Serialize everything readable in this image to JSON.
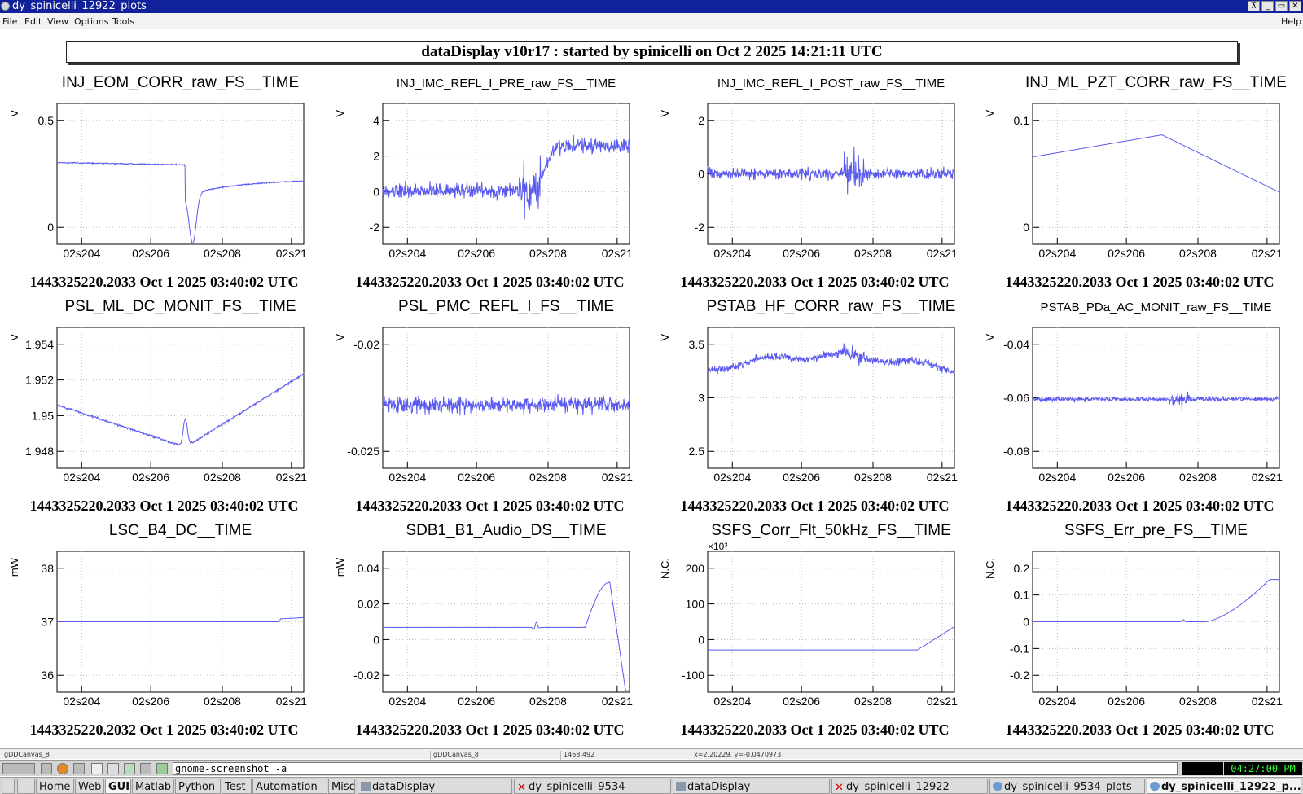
{
  "window": {
    "title": "dy_spinicelli_12922_plots"
  },
  "menu": {
    "file": "File",
    "edit": "Edit",
    "view": "View",
    "options": "Options",
    "tools": "Tools",
    "help": "Help"
  },
  "header": {
    "text": "dataDisplay v10r17 : started by spinicelli on Oct  2 2025 14:21:11 UTC"
  },
  "colors": {
    "trace": "#5a5af0",
    "title_bar": "#10219a",
    "clock_text": "#33ff33"
  },
  "plots": [
    {
      "title": "INJ_EOM_CORR_raw_FS__TIME",
      "ylabel": "V",
      "yticks": [
        "0.5",
        "0"
      ],
      "xticks": [
        "02s204",
        "02s206",
        "02s208",
        "02s21"
      ],
      "timestamp": "1443325220.2033 Oct 1 2025 03:40:02 UTC"
    },
    {
      "title": "INJ_IMC_REFL_I_PRE_raw_FS__TIME",
      "ylabel": "V",
      "yticks": [
        "4",
        "2",
        "0",
        "-2"
      ],
      "xticks": [
        "02s204",
        "02s206",
        "02s208",
        "02s21"
      ],
      "timestamp": "1443325220.2033 Oct 1 2025 03:40:02 UTC"
    },
    {
      "title": "INJ_IMC_REFL_I_POST_raw_FS__TIME",
      "ylabel": "V",
      "yticks": [
        "2",
        "0",
        "-2"
      ],
      "xticks": [
        "02s204",
        "02s206",
        "02s208",
        "02s21"
      ],
      "timestamp": "1443325220.2033 Oct 1 2025 03:40:02 UTC"
    },
    {
      "title": "INJ_ML_PZT_CORR_raw_FS__TIME",
      "ylabel": "V",
      "yticks": [
        "0.1",
        "0"
      ],
      "xticks": [
        "02s204",
        "02s206",
        "02s208",
        "02s21"
      ],
      "timestamp": "1443325220.2033 Oct 1 2025 03:40:02 UTC"
    },
    {
      "title": "PSL_ML_DC_MONIT_FS__TIME",
      "ylabel": "V",
      "yticks": [
        "1.954",
        "1.952",
        "1.95",
        "1.948"
      ],
      "xticks": [
        "02s204",
        "02s206",
        "02s208",
        "02s21"
      ],
      "timestamp": "1443325220.2033 Oct 1 2025 03:40:02 UTC"
    },
    {
      "title": "PSL_PMC_REFL_I_FS__TIME",
      "ylabel": "V",
      "yticks": [
        "-0.02",
        "-0.025"
      ],
      "xticks": [
        "02s204",
        "02s206",
        "02s208",
        "02s21"
      ],
      "timestamp": "1443325220.2033 Oct 1 2025 03:40:02 UTC"
    },
    {
      "title": "PSTAB_HF_CORR_raw_FS__TIME",
      "ylabel": "V",
      "yticks": [
        "3.5",
        "3",
        "2.5"
      ],
      "xticks": [
        "02s204",
        "02s206",
        "02s208",
        "02s21"
      ],
      "timestamp": "1443325220.2033 Oct 1 2025 03:40:02 UTC"
    },
    {
      "title": "PSTAB_PDa_AC_MONIT_raw_FS__TIME",
      "ylabel": "V",
      "yticks": [
        "-0.04",
        "-0.06",
        "-0.08"
      ],
      "xticks": [
        "02s204",
        "02s206",
        "02s208",
        "02s21"
      ],
      "timestamp": "1443325220.2033 Oct 1 2025 03:40:02 UTC"
    },
    {
      "title": "LSC_B4_DC__TIME",
      "ylabel": "mW",
      "yticks": [
        "38",
        "37",
        "36"
      ],
      "xticks": [
        "02s204",
        "02s206",
        "02s208",
        "02s21"
      ],
      "timestamp": "1443325220.2032 Oct 1 2025 03:40:02 UTC"
    },
    {
      "title": "SDB1_B1_Audio_DS__TIME",
      "ylabel": "mW",
      "yticks": [
        "0.04",
        "0.02",
        "0",
        "-0.02"
      ],
      "xticks": [
        "02s204",
        "02s206",
        "02s208",
        "02s21"
      ],
      "timestamp": "1443325220.2033 Oct 1 2025 03:40:02 UTC"
    },
    {
      "title": "SSFS_Corr_Flt_50kHz_FS__TIME",
      "ylabel": "N.C.",
      "exponent": "×10³",
      "yticks": [
        "200",
        "100",
        "0",
        "-100"
      ],
      "xticks": [
        "02s204",
        "02s206",
        "02s208",
        "02s21"
      ],
      "timestamp": "1443325220.2033 Oct 1 2025 03:40:02 UTC"
    },
    {
      "title": "SSFS_Err_pre_FS__TIME",
      "ylabel": "N.C.",
      "yticks": [
        "0.2",
        "0.1",
        "0",
        "-0.1",
        "-0.2"
      ],
      "xticks": [
        "02s204",
        "02s206",
        "02s208",
        "02s21"
      ],
      "timestamp": "1443325220.2033 Oct 1 2025 03:40:02 UTC"
    }
  ],
  "status": {
    "canvas_name": "gDDCanvas_8",
    "object_name": "gDDCanvas_8",
    "coords": "1468,492",
    "xy": "x=2.20229, y=-0.0470973"
  },
  "panel": {
    "command": "gnome-screenshot -a",
    "clock": "04:27:00 PM"
  },
  "taskbar": {
    "items": [
      "Home",
      "Web",
      "GUI",
      "Matlab",
      "Python",
      "Test",
      "Automation",
      "Misc"
    ],
    "windows": [
      "dataDisplay",
      "dy_spinicelli_9534",
      "dataDisplay",
      "dy_spinicelli_12922",
      "dy_spinicelli_9534_plots",
      "dy_spinicelli_12922_p..."
    ]
  }
}
